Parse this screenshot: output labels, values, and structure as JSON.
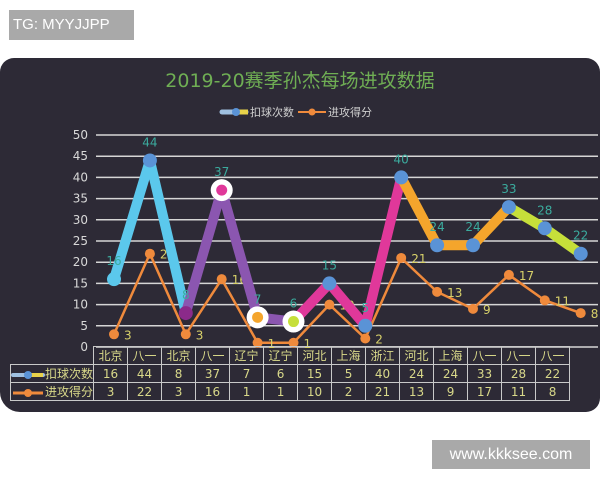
{
  "watermarks": {
    "top_left": "TG: MYYJJPP",
    "bottom_right": "www.kkksee.com"
  },
  "chart_data": {
    "type": "line",
    "title": "2019-20赛季孙杰每场进攻数据",
    "categories": [
      "北京",
      "八一",
      "北京",
      "八一",
      "辽宁",
      "辽宁",
      "河北",
      "上海",
      "浙江",
      "河北",
      "上海",
      "八一",
      "八一",
      "八一"
    ],
    "series": [
      {
        "name": "扣球次数",
        "values": [
          16,
          44,
          8,
          37,
          7,
          6,
          15,
          5,
          40,
          24,
          24,
          33,
          28,
          22
        ]
      },
      {
        "name": "进攻得分",
        "values": [
          3,
          22,
          3,
          16,
          1,
          1,
          10,
          2,
          21,
          13,
          9,
          17,
          11,
          8
        ]
      }
    ],
    "y_ticks": [
      0,
      5,
      10,
      15,
      20,
      25,
      30,
      35,
      40,
      45,
      50
    ],
    "ylim": [
      0,
      50
    ],
    "grid": true,
    "legend_position": "top",
    "segment_colors": [
      "#5bc8ec",
      "#5bc8ec",
      "#8b56b0",
      "#8b56b0",
      "#8b56b0",
      "#e0389a",
      "#e0389a",
      "#e0389a",
      "#f4a52c",
      "#f4a52c",
      "#f4a52c",
      "#c6df3a",
      "#c6df3a"
    ],
    "colors": {
      "series2": "#ef8a3c",
      "marker": "#5a93d6",
      "title": "#6fae54",
      "label1": "#3bab9e",
      "label2": "#d8d16a"
    }
  },
  "table": {
    "headers": [
      "北京",
      "八一",
      "北京",
      "八一",
      "辽宁",
      "辽宁",
      "河北",
      "上海",
      "浙江",
      "河北",
      "上海",
      "八一",
      "八一",
      "八一"
    ],
    "row1_label": "扣球次数",
    "row2_label": "进攻得分",
    "row1": [
      "16",
      "44",
      "8",
      "37",
      "7",
      "6",
      "15",
      "5",
      "40",
      "24",
      "24",
      "33",
      "28",
      "22"
    ],
    "row2": [
      "3",
      "22",
      "3",
      "16",
      "1",
      "1",
      "10",
      "2",
      "21",
      "13",
      "9",
      "17",
      "11",
      "8"
    ]
  }
}
